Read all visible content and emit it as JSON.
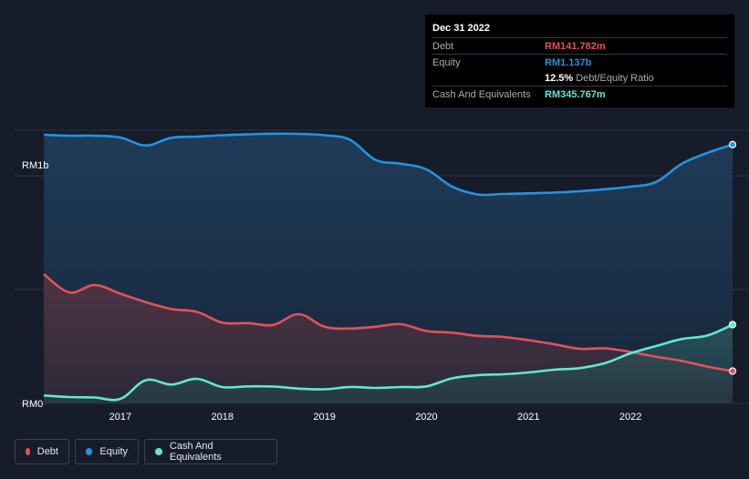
{
  "tooltip": {
    "date": "Dec 31 2022",
    "debt_label": "Debt",
    "debt_value": "RM141.782m",
    "equity_label": "Equity",
    "equity_value": "RM1.137b",
    "ratio_value": "12.5%",
    "ratio_label": "Debt/Equity Ratio",
    "cash_label": "Cash And Equivalents",
    "cash_value": "RM345.767m"
  },
  "legend": {
    "debt": "Debt",
    "equity": "Equity",
    "cash": "Cash And Equivalents"
  },
  "colors": {
    "debt": "#e0525b",
    "equity": "#2394df",
    "cash": "#63e6d0",
    "background": "#161c29"
  },
  "chart_data": {
    "type": "area",
    "ylim": [
      0,
      1200
    ],
    "y_unit": "RM m",
    "y_tick_labels": [
      {
        "value": 1000,
        "label": "RM1b"
      },
      {
        "value": 0,
        "label": "RM0"
      }
    ],
    "x_range": [
      2016.25,
      2023.0
    ],
    "x_tick_labels": [
      "2017",
      "2018",
      "2019",
      "2020",
      "2021",
      "2022"
    ],
    "series": [
      {
        "name": "Equity",
        "color": "#2394df",
        "x": [
          2016.25,
          2016.5,
          2016.75,
          2017.0,
          2017.25,
          2017.5,
          2017.75,
          2018.0,
          2018.25,
          2018.5,
          2018.75,
          2019.0,
          2019.25,
          2019.5,
          2019.75,
          2020.0,
          2020.25,
          2020.5,
          2020.75,
          2021.0,
          2021.25,
          2021.5,
          2021.75,
          2022.0,
          2022.25,
          2022.5,
          2022.75,
          2023.0
        ],
        "values": [
          1180,
          1176,
          1176,
          1168,
          1133,
          1167,
          1172,
          1178,
          1182,
          1185,
          1184,
          1178,
          1158,
          1070,
          1053,
          1028,
          953,
          918,
          920,
          923,
          926,
          932,
          941,
          952,
          973,
          1052,
          1100,
          1137
        ]
      },
      {
        "name": "Debt",
        "color": "#e0525b",
        "x": [
          2016.25,
          2016.5,
          2016.75,
          2017.0,
          2017.25,
          2017.5,
          2017.75,
          2018.0,
          2018.25,
          2018.5,
          2018.75,
          2019.0,
          2019.25,
          2019.5,
          2019.75,
          2020.0,
          2020.25,
          2020.5,
          2020.75,
          2021.0,
          2021.25,
          2021.5,
          2021.75,
          2022.0,
          2022.25,
          2022.5,
          2022.75,
          2023.0
        ],
        "values": [
          568,
          488,
          520,
          482,
          445,
          415,
          402,
          355,
          353,
          345,
          392,
          337,
          329,
          337,
          348,
          318,
          311,
          297,
          292,
          278,
          260,
          240,
          242,
          226,
          205,
          187,
          162,
          142
        ]
      },
      {
        "name": "Cash And Equivalents",
        "color": "#63e6d0",
        "x": [
          2016.25,
          2016.5,
          2016.75,
          2017.0,
          2017.25,
          2017.5,
          2017.75,
          2018.0,
          2018.25,
          2018.5,
          2018.75,
          2019.0,
          2019.25,
          2019.5,
          2019.75,
          2020.0,
          2020.25,
          2020.5,
          2020.75,
          2021.0,
          2021.25,
          2021.5,
          2021.75,
          2022.0,
          2022.25,
          2022.5,
          2022.75,
          2023.0
        ],
        "values": [
          35,
          28,
          26,
          20,
          102,
          83,
          108,
          72,
          75,
          74,
          65,
          62,
          72,
          68,
          72,
          75,
          110,
          124,
          128,
          136,
          148,
          155,
          177,
          220,
          252,
          283,
          298,
          346
        ]
      }
    ]
  }
}
